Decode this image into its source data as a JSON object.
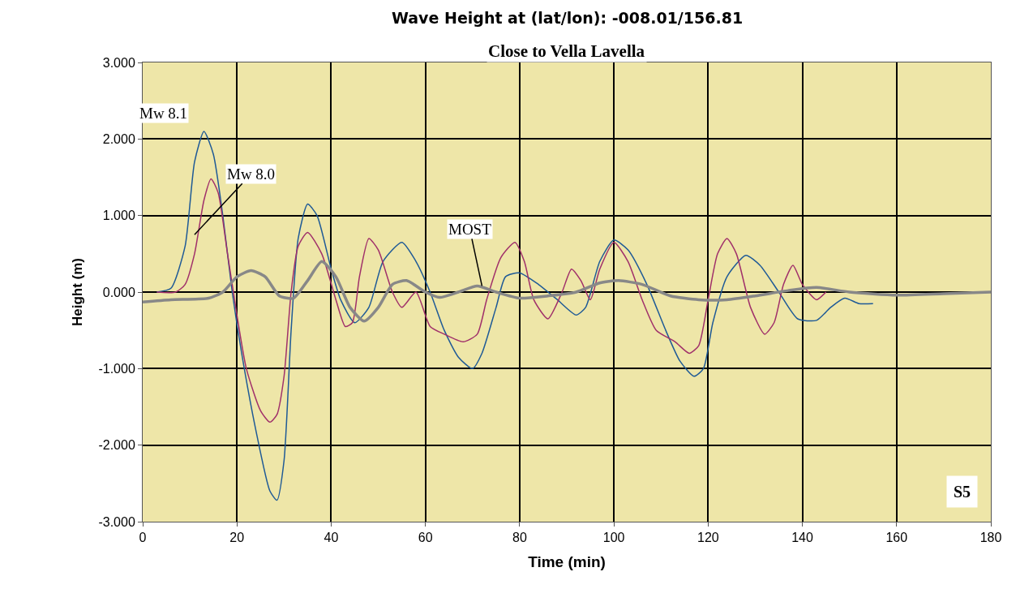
{
  "chart_data": {
    "type": "line",
    "title": "Wave Height at (lat/lon): -008.01/156.81",
    "subtitle": "Close to Vella Lavella",
    "xlabel": "Time (min)",
    "ylabel": "Height (m)",
    "xlim": [
      0,
      180
    ],
    "xticks": [
      0,
      20,
      40,
      60,
      80,
      100,
      120,
      140,
      160,
      180
    ],
    "ylim": [
      -3,
      3
    ],
    "yticks": [
      {
        "value": 3,
        "label": "3.000"
      },
      {
        "value": 2,
        "label": "2.000"
      },
      {
        "value": 1,
        "label": "1.000"
      },
      {
        "value": 0,
        "label": "0.000"
      },
      {
        "value": -1,
        "label": "-1.000"
      },
      {
        "value": -2,
        "label": "-2.000"
      },
      {
        "value": -3,
        "label": "-3.000"
      }
    ],
    "grid": true,
    "series": [
      {
        "color": "#1f5a96",
        "x": [
          3,
          6,
          9,
          11,
          13,
          15,
          17,
          19,
          21,
          24,
          27,
          28.5,
          30,
          31.5,
          33,
          35,
          37,
          40,
          42,
          45,
          48,
          51,
          55,
          58,
          61,
          64,
          67,
          70,
          72,
          75,
          77,
          80,
          84,
          88,
          92,
          94,
          97,
          100,
          103,
          107,
          111,
          114,
          117,
          119,
          121,
          124,
          128,
          131,
          135,
          139,
          143,
          146,
          149,
          152,
          155
        ],
        "values": [
          0,
          0.05,
          0.6,
          1.7,
          2.1,
          1.8,
          1.0,
          0.0,
          -0.8,
          -1.8,
          -2.6,
          -2.72,
          -2.2,
          -0.5,
          0.7,
          1.15,
          1.0,
          0.3,
          -0.1,
          -0.4,
          -0.2,
          0.4,
          0.65,
          0.4,
          0.0,
          -0.5,
          -0.85,
          -1.0,
          -0.8,
          -0.2,
          0.2,
          0.25,
          0.1,
          -0.1,
          -0.3,
          -0.2,
          0.4,
          0.68,
          0.55,
          0.1,
          -0.5,
          -0.9,
          -1.1,
          -1.0,
          -0.4,
          0.2,
          0.48,
          0.35,
          0.0,
          -0.35,
          -0.37,
          -0.2,
          -0.08,
          -0.15,
          -0.15
        ]
      },
      {
        "color": "#a0306a",
        "x": [
          3,
          7,
          9,
          11,
          13,
          14.5,
          16,
          18,
          20,
          22,
          25,
          27,
          28.5,
          30,
          31.5,
          33,
          35,
          38,
          41,
          43,
          44.5,
          46,
          48,
          50,
          53,
          55,
          58,
          61,
          64,
          68,
          71,
          73,
          76,
          79,
          81,
          83,
          86,
          89,
          91,
          93,
          95,
          97,
          100,
          103,
          106,
          109,
          113,
          116,
          118,
          120,
          122,
          124,
          126,
          129,
          132,
          134,
          136,
          138,
          140,
          143,
          145
        ],
        "values": [
          0,
          0,
          0.1,
          0.5,
          1.2,
          1.48,
          1.3,
          0.5,
          -0.3,
          -1.0,
          -1.55,
          -1.7,
          -1.6,
          -1.1,
          0.0,
          0.6,
          0.78,
          0.5,
          -0.1,
          -0.45,
          -0.4,
          0.2,
          0.7,
          0.55,
          0.0,
          -0.2,
          0.0,
          -0.45,
          -0.55,
          -0.65,
          -0.55,
          -0.1,
          0.45,
          0.65,
          0.4,
          -0.1,
          -0.35,
          0.0,
          0.3,
          0.15,
          -0.1,
          0.3,
          0.65,
          0.4,
          -0.1,
          -0.5,
          -0.65,
          -0.8,
          -0.7,
          -0.1,
          0.5,
          0.7,
          0.5,
          -0.2,
          -0.55,
          -0.4,
          0.1,
          0.35,
          0.1,
          -0.1,
          0.0
        ]
      },
      {
        "color": "#888888",
        "x": [
          0,
          6,
          14,
          17,
          20,
          23,
          26,
          29,
          32,
          35,
          38,
          41,
          44,
          47,
          50,
          53,
          56,
          60,
          63,
          67,
          71,
          75,
          80,
          86,
          92,
          97,
          101,
          106,
          112,
          118,
          124,
          130,
          137,
          143,
          150,
          160,
          170,
          180
        ],
        "values": [
          -0.13,
          -0.1,
          -0.08,
          0.0,
          0.2,
          0.28,
          0.2,
          -0.05,
          -0.08,
          0.15,
          0.4,
          0.2,
          -0.2,
          -0.38,
          -0.2,
          0.1,
          0.15,
          0.0,
          -0.07,
          0.0,
          0.08,
          0.0,
          -0.08,
          -0.05,
          0.0,
          0.12,
          0.15,
          0.1,
          -0.05,
          -0.1,
          -0.1,
          -0.05,
          0.02,
          0.06,
          0.0,
          -0.04,
          -0.02,
          0.0
        ]
      }
    ],
    "annotations": [
      {
        "text": "Mw 8.1",
        "x": 13,
        "y": 2.1
      },
      {
        "text": "Mw 8.0",
        "x": 11,
        "y": 0.75
      },
      {
        "text": "MOST",
        "x": 72,
        "y": 0.08
      },
      "S5"
    ]
  }
}
